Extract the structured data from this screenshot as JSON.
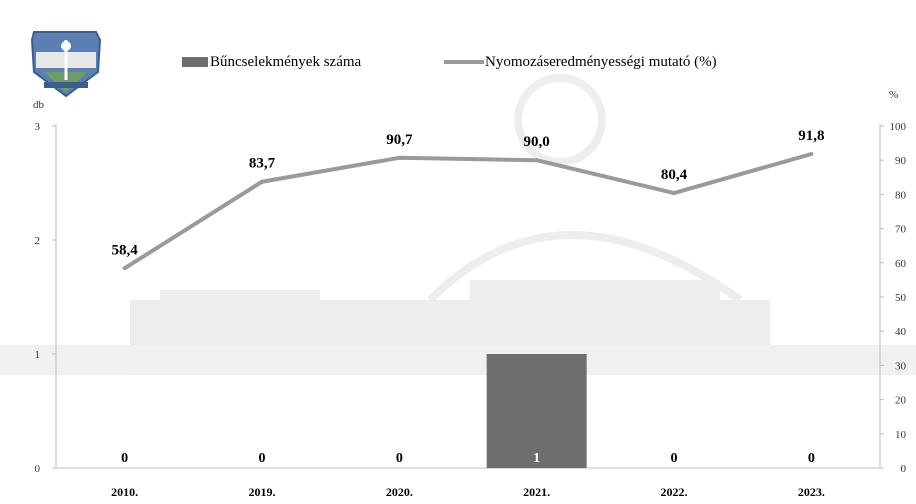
{
  "colors": {
    "bar": "#6e6e6e",
    "line": "#9a9a9a",
    "axis": "#bdbdbd",
    "text": "#000000",
    "badge_blue": "#5a7fb0",
    "badge_green": "#6f9a6a"
  },
  "logo": {
    "icon": "police-badge-icon"
  },
  "chart_data": {
    "type": "bar",
    "categories": [
      "2010.",
      "2019.",
      "2020.",
      "2021.",
      "2022.",
      "2023."
    ],
    "series": [
      {
        "name": "Bűncselekmények száma",
        "type": "bar",
        "axis": "left",
        "values": [
          0,
          0,
          0,
          1,
          0,
          0
        ],
        "labels": [
          "0",
          "0",
          "0",
          "1",
          "0",
          "0"
        ]
      },
      {
        "name": "Nyomozáseredményességi mutató (%)",
        "type": "line",
        "axis": "right",
        "values": [
          58.4,
          83.7,
          90.7,
          90.0,
          80.4,
          91.8
        ],
        "labels": [
          "58,4",
          "83,7",
          "90,7",
          "90,0",
          "80,4",
          "91,8"
        ]
      }
    ],
    "y_left": {
      "label": "db",
      "ylim": [
        0,
        3
      ],
      "ticks": [
        "0",
        "1",
        "2",
        "3"
      ]
    },
    "y_right": {
      "label": "%",
      "ylim": [
        0,
        100
      ],
      "ticks": [
        "0",
        "10",
        "20",
        "30",
        "40",
        "50",
        "60",
        "70",
        "80",
        "90",
        "100"
      ]
    },
    "legend_position": "top",
    "grid": false
  }
}
